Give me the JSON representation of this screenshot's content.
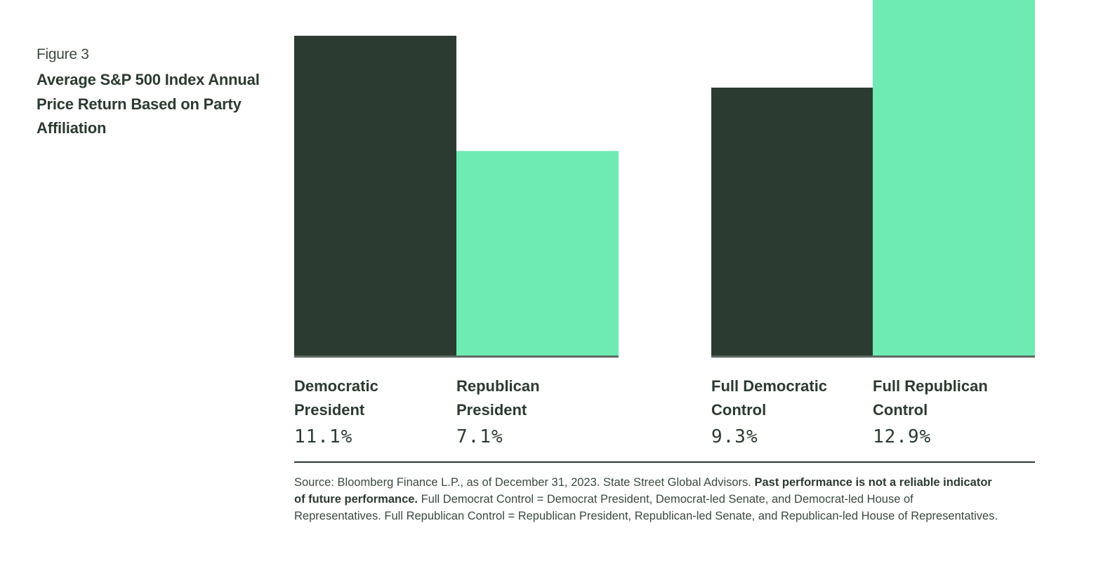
{
  "figure_label": "Figure 3",
  "figure_title": "Average S&P 500 Index Annual Price Return Based on Party Affiliation",
  "colors": {
    "dark": "#2c3b31",
    "light": "#6debb2"
  },
  "chart_data": {
    "type": "bar",
    "title": "Average S&P 500 Index Annual Price Return Based on Party Affiliation",
    "xlabel": "",
    "ylabel": "",
    "grid": false,
    "categories": [
      "Democratic President",
      "Republican President",
      "Full Democratic Control",
      "Full Republican Control"
    ],
    "values": [
      11.1,
      7.1,
      9.3,
      12.9
    ],
    "value_labels": [
      "11.1%",
      "7.1%",
      "9.3%",
      "12.9%"
    ],
    "labels": [
      {
        "line1": "Democratic",
        "line2": "President"
      },
      {
        "line1": "Republican",
        "line2": "President"
      },
      {
        "line1": "Full Democratic",
        "line2": "Control"
      },
      {
        "line1": "Full Republican",
        "line2": "Control"
      }
    ],
    "bar_colors": [
      "#2c3b31",
      "#6debb2",
      "#2c3b31",
      "#6debb2"
    ]
  },
  "source": {
    "prefix": "Source: Bloomberg Finance L.P., as of December 31, 2023. State Street Global Advisors. ",
    "bold": "Past performance is not a reliable indicator of future performance.",
    "suffix": " Full Democrat Control = Democrat President, Democrat-led Senate, and Democrat-led House of Representatives. Full Republican Control = Republican President, Republican-led Senate, and Republican-led House of Representatives."
  }
}
